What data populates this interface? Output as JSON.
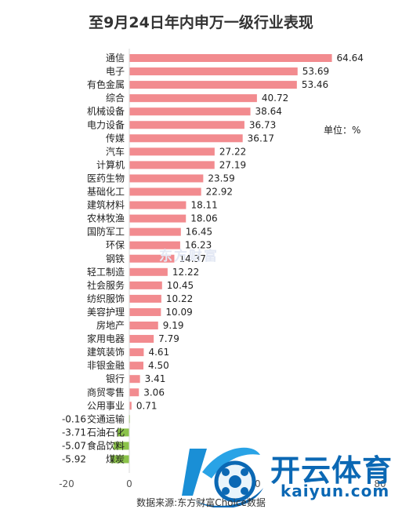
{
  "chart_data": {
    "type": "bar",
    "orientation": "horizontal",
    "title": "至9月24日年内申万一级行业表现",
    "unit_label": "单位：%",
    "source": "数据来源:东方财富Choice数据",
    "categories": [
      "通信",
      "电子",
      "有色金属",
      "综合",
      "机械设备",
      "电力设备",
      "传媒",
      "汽车",
      "计算机",
      "医药生物",
      "基础化工",
      "建筑材料",
      "农林牧渔",
      "国防军工",
      "环保",
      "钢铁",
      "轻工制造",
      "社会服务",
      "纺织服饰",
      "美容护理",
      "房地产",
      "家用电器",
      "建筑装饰",
      "非银金融",
      "银行",
      "商贸零售",
      "公用事业",
      "交通运输",
      "石油石化",
      "食品饮料",
      "煤炭"
    ],
    "values": [
      64.64,
      53.69,
      53.46,
      40.72,
      38.64,
      36.73,
      36.17,
      27.22,
      27.19,
      23.59,
      22.92,
      18.11,
      18.06,
      16.45,
      16.23,
      14.37,
      12.22,
      10.45,
      10.22,
      10.09,
      9.19,
      7.79,
      4.61,
      4.5,
      3.41,
      3.06,
      0.71,
      -0.16,
      -3.71,
      -5.07,
      -5.92
    ],
    "value_labels": [
      "64.64",
      "53.69",
      "53.46",
      "40.72",
      "38.64",
      "36.73",
      "36.17",
      "27.22",
      "27.19",
      "23.59",
      "22.92",
      "18.11",
      "18.06",
      "16.45",
      "16.23",
      "14.37",
      "12.22",
      "10.45",
      "10.22",
      "10.09",
      "9.19",
      "7.79",
      "4.61",
      "4.50",
      "3.41",
      "3.06",
      "0.71",
      "-0.16",
      "-3.71",
      "-5.07",
      "-5.92"
    ],
    "xlim": [
      -20,
      80
    ],
    "xticks": [
      -20,
      0,
      40,
      80
    ],
    "xtick_labels": [
      "-20",
      "0",
      "40",
      "80"
    ],
    "grid": false,
    "colors": {
      "positive": "#f28b8f",
      "negative": "#8bc34a",
      "axis": "#d9d9d9"
    }
  },
  "watermark": {
    "center": "东方财富",
    "brand": "开云体育",
    "domain": "kaiyun.com"
  }
}
